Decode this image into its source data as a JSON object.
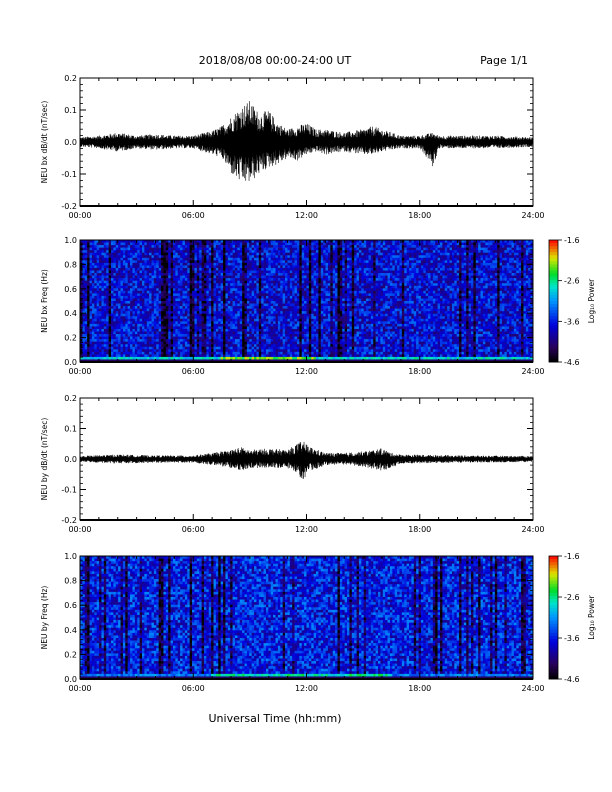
{
  "header": {
    "title": "2018/08/08  00:00-24:00 UT",
    "page": "Page 1/1"
  },
  "x_axis_title": "Universal Time (hh:mm)",
  "colorbar": {
    "label": "Log₁₀ Power",
    "ticks": [
      "-1.6",
      "-2.6",
      "-3.6",
      "-4.6"
    ]
  },
  "chart_data": [
    {
      "type": "line",
      "ylabel": "NEU bx dB/dt (nT/sec)",
      "xlim": [
        0,
        24
      ],
      "ylim": [
        -0.2,
        0.2
      ],
      "x_ticks": [
        "00:00",
        "06:00",
        "12:00",
        "18:00",
        "24:00"
      ],
      "y_ticks": [
        "0.2",
        "0.1",
        "0.0",
        "-0.1",
        "-0.2"
      ],
      "background_amplitude": 0.01,
      "envelope": [
        {
          "x": 0.0,
          "max": 0.015,
          "min": -0.015
        },
        {
          "x": 1.0,
          "max": 0.02,
          "min": -0.02
        },
        {
          "x": 2.0,
          "max": 0.03,
          "min": -0.03
        },
        {
          "x": 3.0,
          "max": 0.02,
          "min": -0.02
        },
        {
          "x": 4.0,
          "max": 0.025,
          "min": -0.025
        },
        {
          "x": 5.0,
          "max": 0.02,
          "min": -0.02
        },
        {
          "x": 6.0,
          "max": 0.02,
          "min": -0.02
        },
        {
          "x": 7.0,
          "max": 0.035,
          "min": -0.04
        },
        {
          "x": 7.5,
          "max": 0.05,
          "min": -0.05
        },
        {
          "x": 8.0,
          "max": 0.08,
          "min": -0.1
        },
        {
          "x": 8.5,
          "max": 0.11,
          "min": -0.13
        },
        {
          "x": 9.0,
          "max": 0.13,
          "min": -0.13
        },
        {
          "x": 9.5,
          "max": 0.09,
          "min": -0.1
        },
        {
          "x": 10.0,
          "max": 0.1,
          "min": -0.08
        },
        {
          "x": 10.5,
          "max": 0.06,
          "min": -0.07
        },
        {
          "x": 11.0,
          "max": 0.04,
          "min": -0.05
        },
        {
          "x": 11.5,
          "max": 0.05,
          "min": -0.06
        },
        {
          "x": 12.0,
          "max": 0.06,
          "min": -0.04
        },
        {
          "x": 12.5,
          "max": 0.04,
          "min": -0.03
        },
        {
          "x": 13.0,
          "max": 0.04,
          "min": -0.04
        },
        {
          "x": 14.0,
          "max": 0.03,
          "min": -0.03
        },
        {
          "x": 15.0,
          "max": 0.04,
          "min": -0.04
        },
        {
          "x": 15.5,
          "max": 0.05,
          "min": -0.04
        },
        {
          "x": 16.0,
          "max": 0.04,
          "min": -0.03
        },
        {
          "x": 17.0,
          "max": 0.02,
          "min": -0.02
        },
        {
          "x": 18.0,
          "max": 0.02,
          "min": -0.02
        },
        {
          "x": 18.7,
          "max": 0.03,
          "min": -0.08
        },
        {
          "x": 19.0,
          "max": 0.02,
          "min": -0.02
        },
        {
          "x": 20.0,
          "max": 0.02,
          "min": -0.02
        },
        {
          "x": 22.0,
          "max": 0.02,
          "min": -0.02
        },
        {
          "x": 24.0,
          "max": 0.015,
          "min": -0.015
        }
      ]
    },
    {
      "type": "heatmap",
      "ylabel": "NEU bx Freq (Hz)",
      "xlim": [
        0,
        24
      ],
      "ylim": [
        0.0,
        1.0
      ],
      "x_ticks": [
        "00:00",
        "06:00",
        "12:00",
        "18:00",
        "24:00"
      ],
      "y_ticks": [
        "1.0",
        "0.8",
        "0.6",
        "0.4",
        "0.2",
        "0.0"
      ],
      "zlim": [
        -4.6,
        -1.6
      ],
      "typical_log_power": -3.7,
      "low_frequency_peak_log_power": -2.0,
      "low_frequency_peak_time_range": [
        7.5,
        12.5
      ]
    },
    {
      "type": "line",
      "ylabel": "NEU by dB/dt (nT/sec)",
      "xlim": [
        0,
        24
      ],
      "ylim": [
        -0.2,
        0.2
      ],
      "x_ticks": [
        "00:00",
        "06:00",
        "12:00",
        "18:00",
        "24:00"
      ],
      "y_ticks": [
        "0.2",
        "0.1",
        "0.0",
        "-0.1",
        "-0.2"
      ],
      "background_amplitude": 0.008,
      "envelope": [
        {
          "x": 0.0,
          "max": 0.01,
          "min": -0.01
        },
        {
          "x": 2.0,
          "max": 0.015,
          "min": -0.015
        },
        {
          "x": 4.0,
          "max": 0.012,
          "min": -0.012
        },
        {
          "x": 6.0,
          "max": 0.012,
          "min": -0.012
        },
        {
          "x": 7.0,
          "max": 0.02,
          "min": -0.02
        },
        {
          "x": 8.0,
          "max": 0.03,
          "min": -0.03
        },
        {
          "x": 8.5,
          "max": 0.04,
          "min": -0.04
        },
        {
          "x": 9.0,
          "max": 0.03,
          "min": -0.03
        },
        {
          "x": 10.0,
          "max": 0.035,
          "min": -0.03
        },
        {
          "x": 11.0,
          "max": 0.03,
          "min": -0.03
        },
        {
          "x": 11.5,
          "max": 0.05,
          "min": -0.05
        },
        {
          "x": 11.8,
          "max": 0.06,
          "min": -0.07
        },
        {
          "x": 12.2,
          "max": 0.04,
          "min": -0.04
        },
        {
          "x": 13.0,
          "max": 0.02,
          "min": -0.02
        },
        {
          "x": 14.0,
          "max": 0.02,
          "min": -0.02
        },
        {
          "x": 15.0,
          "max": 0.025,
          "min": -0.025
        },
        {
          "x": 16.0,
          "max": 0.035,
          "min": -0.04
        },
        {
          "x": 16.5,
          "max": 0.02,
          "min": -0.03
        },
        {
          "x": 17.0,
          "max": 0.015,
          "min": -0.015
        },
        {
          "x": 20.0,
          "max": 0.012,
          "min": -0.012
        },
        {
          "x": 24.0,
          "max": 0.01,
          "min": -0.01
        }
      ]
    },
    {
      "type": "heatmap",
      "ylabel": "NEU by Freq (Hz)",
      "xlim": [
        0,
        24
      ],
      "ylim": [
        0.0,
        1.0
      ],
      "x_ticks": [
        "00:00",
        "06:00",
        "12:00",
        "18:00",
        "24:00"
      ],
      "y_ticks": [
        "1.0",
        "0.8",
        "0.6",
        "0.4",
        "0.2",
        "0.0"
      ],
      "zlim": [
        -4.6,
        -1.6
      ],
      "typical_log_power": -3.6,
      "low_frequency_peak_log_power": -2.4,
      "low_frequency_peak_time_range": [
        7.0,
        16.5
      ]
    }
  ]
}
